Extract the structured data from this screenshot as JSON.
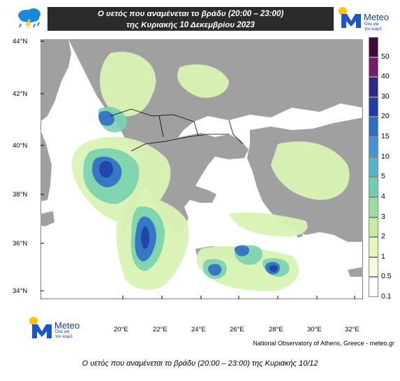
{
  "header": {
    "title_line1": "Ο υετός που αναμένεται το βράδυ (20:00 – 23:00)",
    "title_line2": "της Κυριακής 10 Δεκεμβρίου 2023"
  },
  "logo": {
    "brand": "Meteo",
    "tagline_line1": "Όλα για",
    "tagline_line2": "τον καιρό"
  },
  "map": {
    "lat_labels": [
      "44°N",
      "42°N",
      "40°N",
      "38°N",
      "36°N",
      "34°N"
    ],
    "lon_labels": [
      "20°E",
      "22°E",
      "24°E",
      "26°E",
      "28°E",
      "30°E",
      "32°E"
    ],
    "colors": {
      "sea": "#ffffff",
      "land": "#a0a0a0",
      "border": "#000000"
    }
  },
  "colorbar": {
    "labels": [
      "50",
      "40",
      "30",
      "20",
      "15",
      "10",
      "5",
      "4",
      "3",
      "2",
      "1",
      "0.5",
      "0.1"
    ],
    "colors": [
      "#3d0b3d",
      "#7a1a6e",
      "#2a2a8a",
      "#1f3fa6",
      "#2f6ec8",
      "#3f95d8",
      "#4fb8c8",
      "#6dd0b0",
      "#97e0a0",
      "#c2ee9e",
      "#e5f8b8",
      "#f5fcd8",
      "#ffffff"
    ]
  },
  "credit": "National Observatory of Athens, Greece - meteo.gr",
  "caption": "Ο υετός που αναμένεται το βράδυ (20:00 – 23:00) της Κυριακής 10/12"
}
